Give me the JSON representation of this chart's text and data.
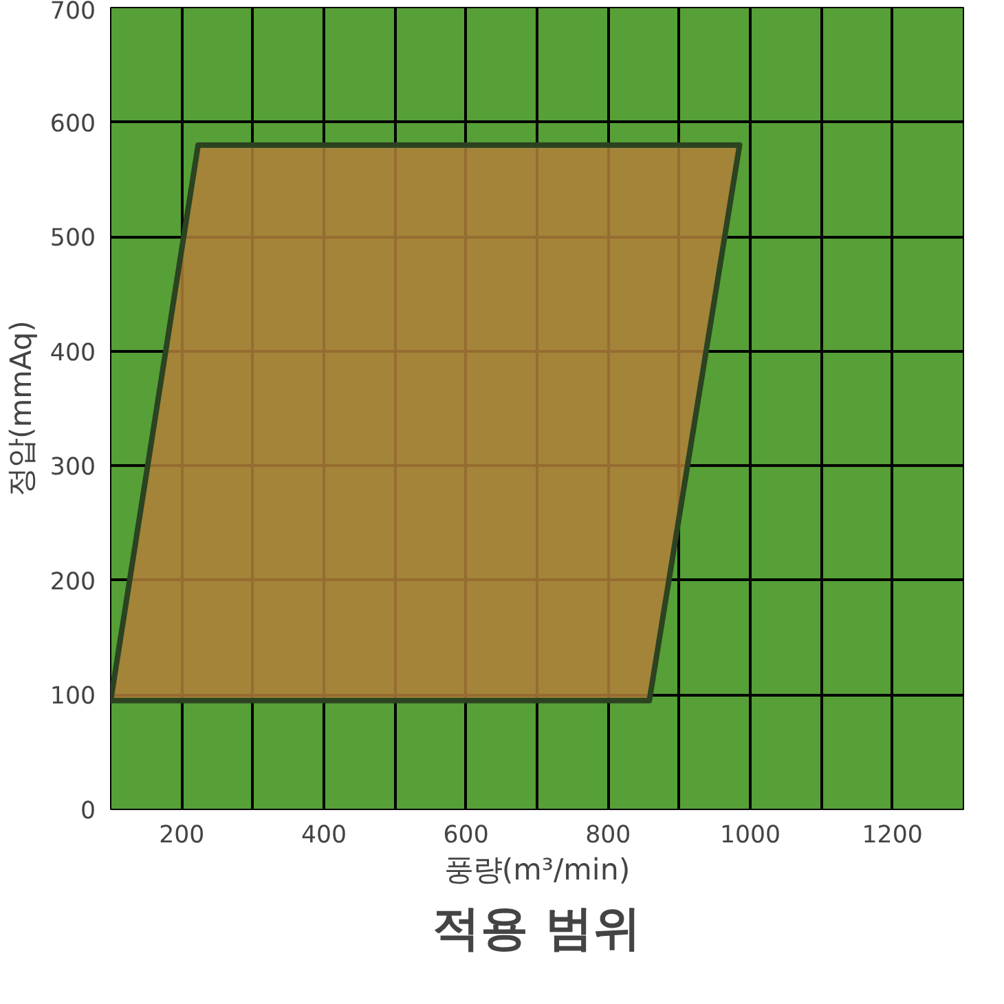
{
  "chart_data": {
    "type": "area",
    "title": "적용 범위",
    "xlabel": "풍량(m³/min)",
    "ylabel": "정압(mmAq)",
    "x": [
      100,
      223,
      985,
      858,
      100
    ],
    "series": [
      {
        "color": "#b07f3a",
        "values": [
          95,
          580,
          580,
          95,
          95
        ]
      }
    ],
    "xlim": [
      100,
      1300
    ],
    "ylim": [
      0,
      700
    ],
    "xticks": [
      {
        "value": 100,
        "label": null
      },
      200,
      {
        "value": 300,
        "label": null
      },
      400,
      {
        "value": 500,
        "label": null
      },
      600,
      {
        "value": 700,
        "label": null
      },
      800,
      {
        "value": 900,
        "label": null
      },
      1000,
      {
        "value": 1100,
        "label": null
      },
      1200,
      {
        "value": 1300,
        "label": null
      }
    ],
    "yticks": [
      0,
      100,
      200,
      300,
      400,
      500,
      600,
      700
    ],
    "grid": true
  }
}
